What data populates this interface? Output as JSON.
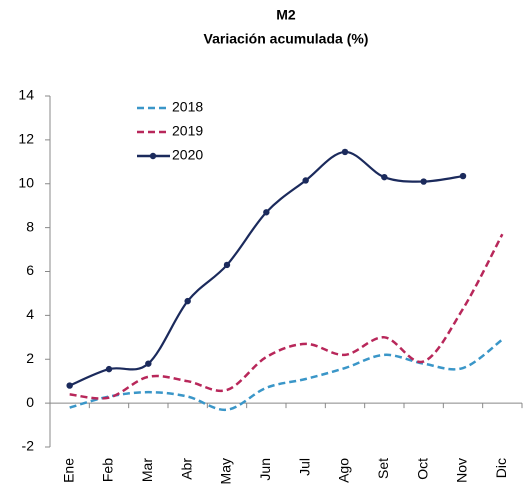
{
  "chart_data": {
    "type": "line",
    "title": "M2",
    "subtitle": "Variación acumulada (%)",
    "categories": [
      "Ene",
      "Feb",
      "Mar",
      "Abr",
      "May",
      "Jun",
      "Jul",
      "Ago",
      "Set",
      "Oct",
      "Nov",
      "Dic"
    ],
    "series": [
      {
        "name": "2018",
        "color": "#3a96c8",
        "dashed": true,
        "markers": false,
        "values": [
          -0.2,
          0.3,
          0.5,
          0.3,
          -0.3,
          0.7,
          1.1,
          1.6,
          2.2,
          1.8,
          1.6,
          2.9
        ]
      },
      {
        "name": "2019",
        "color": "#b8275a",
        "dashed": true,
        "markers": false,
        "values": [
          0.4,
          0.25,
          1.2,
          1.0,
          0.6,
          2.1,
          2.7,
          2.2,
          3.0,
          1.9,
          4.3,
          7.7
        ]
      },
      {
        "name": "2020",
        "color": "#1b2a5c",
        "dashed": false,
        "markers": true,
        "values": [
          0.8,
          1.55,
          1.8,
          4.65,
          6.3,
          8.7,
          10.15,
          11.45,
          10.3,
          10.1,
          10.35,
          null
        ]
      }
    ],
    "ylim": [
      -2,
      14
    ],
    "yticks": [
      -2,
      0,
      2,
      4,
      6,
      8,
      10,
      12,
      14
    ],
    "grid": false,
    "smooth": true,
    "legend": "upper left"
  }
}
